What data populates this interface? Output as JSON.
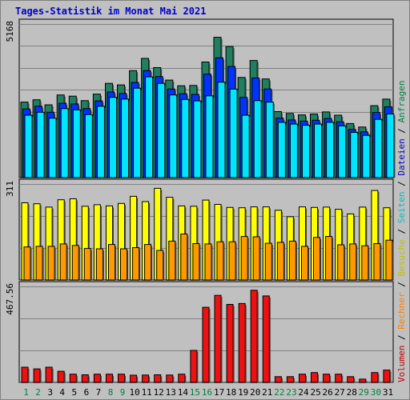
{
  "title": "Tages-Statistik im Monat Mai 2021",
  "legend_right": [
    {
      "label": "Anfragen",
      "color": "#008040"
    },
    {
      "label": "Dateien",
      "color": "#0000c0"
    },
    {
      "label": "Seiten",
      "color": "#00c0c0"
    },
    {
      "label": "Besuche",
      "color": "#c0c000"
    },
    {
      "label": "Rechner",
      "color": "#ff8000"
    },
    {
      "label": "Volumen",
      "color": "#c00000"
    }
  ],
  "legend_sep": "/",
  "chart_data": [
    {
      "type": "bar",
      "panel": "top",
      "ymax_label": "5168",
      "ymax": 5168,
      "categories": [
        "1",
        "2",
        "3",
        "4",
        "5",
        "6",
        "7",
        "8",
        "9",
        "10",
        "11",
        "12",
        "13",
        "14",
        "15",
        "16",
        "17",
        "18",
        "19",
        "20",
        "21",
        "22",
        "23",
        "24",
        "25",
        "26",
        "27",
        "28",
        "29",
        "30",
        "31"
      ],
      "weekend_days": [
        "1",
        "2",
        "8",
        "9",
        "15",
        "16",
        "22",
        "23",
        "29",
        "30"
      ],
      "series": [
        {
          "name": "Anfragen",
          "color": "#1f7f5f",
          "values": [
            2540,
            2620,
            2450,
            2780,
            2740,
            2590,
            2810,
            3170,
            3120,
            3600,
            4010,
            3700,
            3280,
            3090,
            3100,
            3890,
            4720,
            4410,
            3370,
            3940,
            3320,
            2220,
            2160,
            2110,
            2140,
            2210,
            2100,
            1820,
            1700,
            2420,
            2640
          ]
        },
        {
          "name": "Dateien",
          "color": "#0033ff",
          "values": [
            2310,
            2400,
            2200,
            2500,
            2480,
            2320,
            2580,
            2880,
            2830,
            3200,
            3600,
            3400,
            2980,
            2820,
            2800,
            3480,
            4030,
            3740,
            2700,
            3350,
            2980,
            2000,
            1940,
            1900,
            1930,
            1990,
            1880,
            1620,
            1540,
            2190,
            2380
          ]
        },
        {
          "name": "Seiten",
          "color": "#00e5ff",
          "values": [
            2100,
            2200,
            2000,
            2320,
            2280,
            2120,
            2400,
            2700,
            2640,
            3010,
            3390,
            3170,
            2780,
            2630,
            2580,
            2750,
            3210,
            2980,
            2100,
            2590,
            2540,
            1860,
            1800,
            1760,
            1800,
            1860,
            1740,
            1520,
            1420,
            1960,
            2140
          ]
        }
      ]
    },
    {
      "type": "bar",
      "panel": "middle",
      "ymax_label": "311",
      "ymax": 311,
      "series": [
        {
          "name": "Besuche",
          "color": "#ffff00",
          "values": [
            250,
            247,
            236,
            260,
            263,
            239,
            244,
            240,
            248,
            271,
            254,
            297,
            268,
            240,
            239,
            259,
            245,
            235,
            234,
            237,
            237,
            226,
            205,
            237,
            235,
            236,
            229,
            214,
            236,
            290,
            234
          ]
        },
        {
          "name": "Rechner",
          "color": "#ff9900",
          "values": [
            107,
            109,
            109,
            117,
            112,
            102,
            101,
            115,
            101,
            105,
            115,
            96,
            126,
            149,
            118,
            117,
            124,
            124,
            141,
            140,
            119,
            122,
            126,
            109,
            138,
            141,
            114,
            117,
            111,
            118,
            129
          ]
        }
      ]
    },
    {
      "type": "bar",
      "panel": "bottom",
      "ymax_label": "467.56",
      "ymax": 467.56,
      "series": [
        {
          "name": "Volumen",
          "color": "#ee1111",
          "values": [
            74,
            66,
            74,
            54,
            40,
            37,
            40,
            40,
            40,
            35,
            36,
            37,
            36,
            40,
            156,
            366,
            424,
            380,
            384,
            449,
            421,
            28,
            28,
            40,
            48,
            40,
            40,
            28,
            16,
            48,
            60
          ]
        }
      ]
    }
  ]
}
